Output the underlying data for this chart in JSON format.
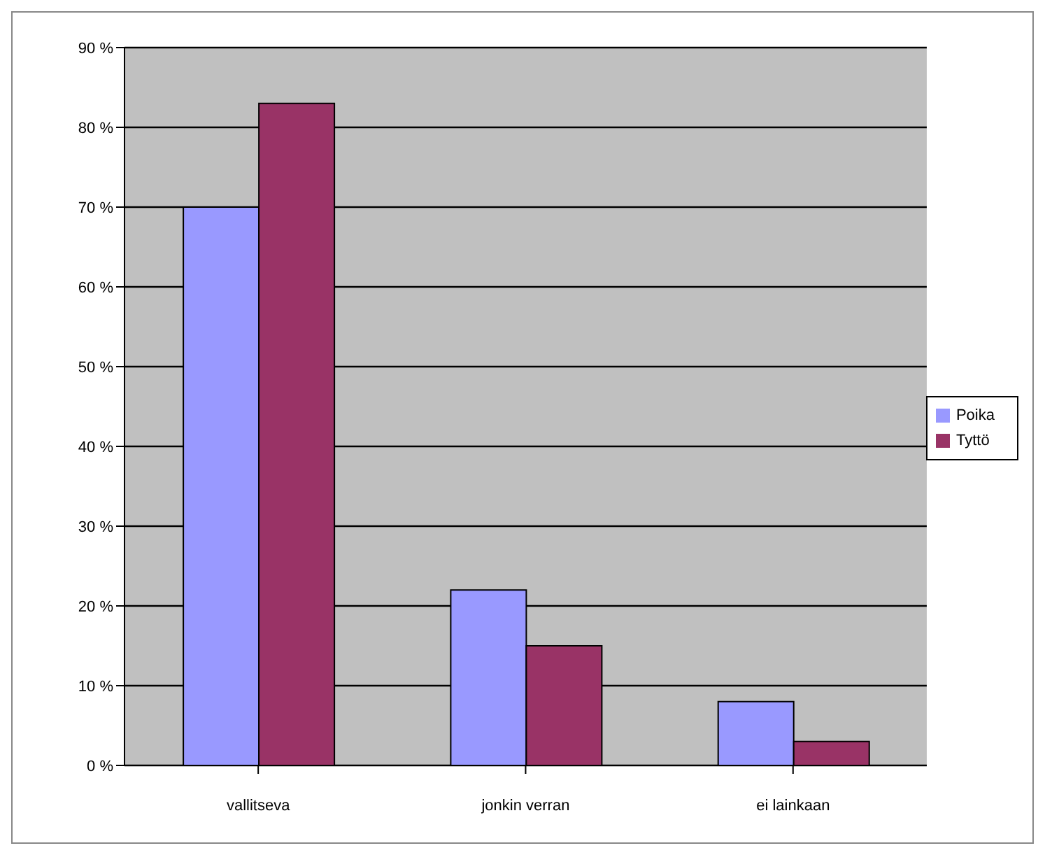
{
  "chart_data": {
    "type": "bar",
    "categories": [
      "vallitseva",
      "jonkin verran",
      "ei lainkaan"
    ],
    "series": [
      {
        "name": "Poika",
        "color": "#9999ff",
        "values": [
          70,
          22,
          8
        ]
      },
      {
        "name": "Tyttö",
        "color": "#993366",
        "values": [
          83,
          15,
          3
        ]
      }
    ],
    "ylim": [
      0,
      90
    ],
    "yticks": [
      {
        "value": 0,
        "label": "0 %"
      },
      {
        "value": 10,
        "label": "10 %"
      },
      {
        "value": 20,
        "label": "20 %"
      },
      {
        "value": 30,
        "label": "30 %"
      },
      {
        "value": 40,
        "label": "40 %"
      },
      {
        "value": 50,
        "label": "50 %"
      },
      {
        "value": 60,
        "label": "60 %"
      },
      {
        "value": 70,
        "label": "70 %"
      },
      {
        "value": 80,
        "label": "80 %"
      },
      {
        "value": 90,
        "label": "90 %"
      }
    ],
    "grid": "y",
    "legend": "right"
  }
}
